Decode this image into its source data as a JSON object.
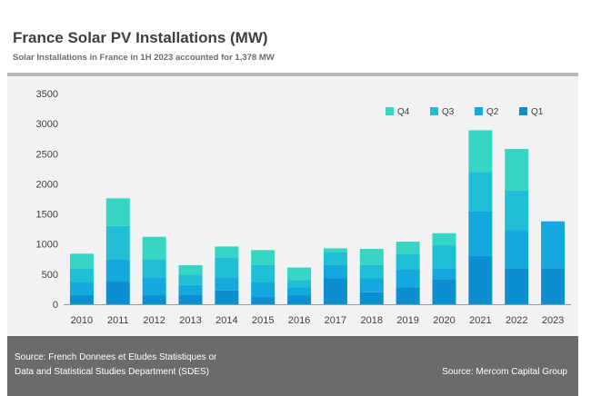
{
  "header": {
    "title": "France Solar PV Installations (MW)",
    "subtitle": "Solar Installations in France in  1H 2023 accounted for 1,378 MW"
  },
  "footer": {
    "source_left_line1": "Source: French Donnees et Etudes Statistiques or",
    "source_left_line2": "Data and Statistical Studies Department (SDES)",
    "source_right": "Source: Mercom Capital Group"
  },
  "chart_data": {
    "type": "bar",
    "stacked": true,
    "title": "France Solar PV Installations (MW)",
    "xlabel": "",
    "ylabel": "",
    "categories": [
      "2010",
      "2011",
      "2012",
      "2013",
      "2014",
      "2015",
      "2016",
      "2017",
      "2018",
      "2019",
      "2020",
      "2021",
      "2022",
      "2023"
    ],
    "ylim": [
      0,
      3500
    ],
    "yticks": [
      0,
      500,
      1000,
      1500,
      2000,
      2500,
      3000,
      3500
    ],
    "grid": false,
    "legend_position": "top-right",
    "legend_order": [
      "Q4",
      "Q3",
      "Q2",
      "Q1"
    ],
    "series": [
      {
        "name": "Q1",
        "color": "#0b8fd0",
        "values": [
          150,
          390,
          150,
          160,
          230,
          120,
          150,
          430,
          200,
          280,
          420,
          800,
          600,
          600
        ]
      },
      {
        "name": "Q2",
        "color": "#14a9dc",
        "values": [
          220,
          350,
          300,
          160,
          220,
          250,
          130,
          230,
          230,
          300,
          180,
          750,
          630,
          778
        ]
      },
      {
        "name": "Q3",
        "color": "#21bfd6",
        "values": [
          230,
          560,
          300,
          170,
          330,
          280,
          120,
          200,
          220,
          260,
          380,
          650,
          660,
          0
        ]
      },
      {
        "name": "Q4",
        "color": "#37d6c4",
        "values": [
          240,
          460,
          370,
          160,
          180,
          250,
          210,
          70,
          270,
          200,
          200,
          690,
          690,
          0
        ]
      }
    ]
  }
}
